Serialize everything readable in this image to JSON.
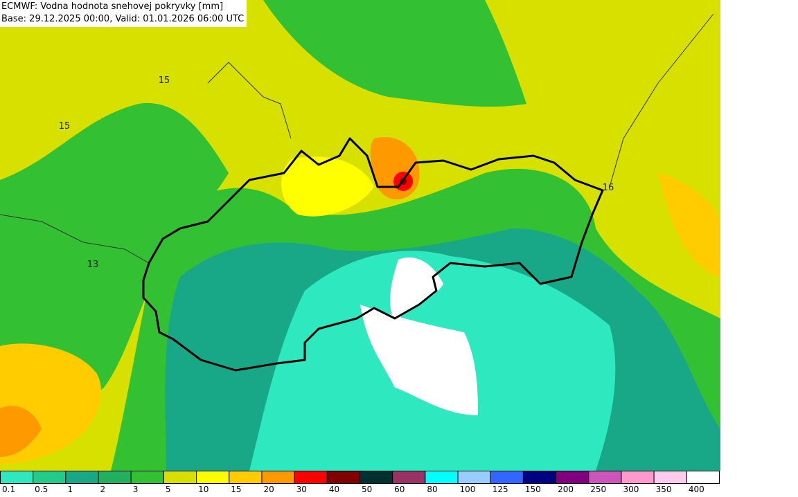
{
  "header": {
    "title": "ECMWF: Vodna hodnota snehovej pokryvky [mm]",
    "subtitle": "Base: 29.12.2025 00:00, Valid: 01.01.2026 06:00 UTC"
  },
  "map_labels": [
    "15",
    "15",
    "13",
    "16"
  ],
  "legend": {
    "items": [
      {
        "label": "0.1",
        "color": "#2ee8c0"
      },
      {
        "label": "0.5",
        "color": "#22cc88"
      },
      {
        "label": "1",
        "color": "#18a888"
      },
      {
        "label": "2",
        "color": "#22b060"
      },
      {
        "label": "3",
        "color": "#33c033"
      },
      {
        "label": "5",
        "color": "#d8e000"
      },
      {
        "label": "10",
        "color": "#ffff00"
      },
      {
        "label": "15",
        "color": "#ffcc00"
      },
      {
        "label": "20",
        "color": "#ff9900"
      },
      {
        "label": "30",
        "color": "#ff0000"
      },
      {
        "label": "40",
        "color": "#800000"
      },
      {
        "label": "50",
        "color": "#003030"
      },
      {
        "label": "60",
        "color": "#993366"
      },
      {
        "label": "80",
        "color": "#00ffff"
      },
      {
        "label": "100",
        "color": "#99ccff"
      },
      {
        "label": "125",
        "color": "#3366ff"
      },
      {
        "label": "150",
        "color": "#000080"
      },
      {
        "label": "200",
        "color": "#800080"
      },
      {
        "label": "250",
        "color": "#cc55bb"
      },
      {
        "label": "300",
        "color": "#ff99cc"
      },
      {
        "label": "350",
        "color": "#ffccee"
      },
      {
        "label": "400",
        "color": "#ffffff"
      }
    ]
  }
}
